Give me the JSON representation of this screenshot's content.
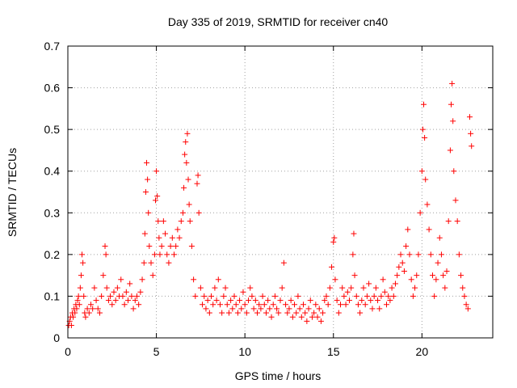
{
  "chart_data": {
    "type": "scatter",
    "title": "Day 335 of 2019, SRMTID for receiver cn40",
    "xlabel": "GPS time / hours",
    "ylabel": "SRMTID / TECUs",
    "xlim": [
      0,
      24
    ],
    "ylim": [
      0,
      0.7
    ],
    "xticks": [
      0,
      5,
      10,
      15,
      20
    ],
    "xtick_labels": [
      "0",
      "5",
      "10",
      "15",
      "20"
    ],
    "yticks": [
      0,
      0.1,
      0.2,
      0.3,
      0.4,
      0.5,
      0.6,
      0.7
    ],
    "ytick_labels": [
      "0",
      "0.1",
      "0.2",
      "0.3",
      "0.4",
      "0.5",
      "0.6",
      "0.7"
    ],
    "grid": true,
    "marker": "+",
    "color": "#ff0000",
    "series": [
      {
        "name": "SRMTID",
        "points": [
          [
            0.05,
            0.03
          ],
          [
            0.1,
            0.04
          ],
          [
            0.15,
            0.05
          ],
          [
            0.2,
            0.03
          ],
          [
            0.25,
            0.06
          ],
          [
            0.3,
            0.05
          ],
          [
            0.35,
            0.07
          ],
          [
            0.4,
            0.06
          ],
          [
            0.45,
            0.08
          ],
          [
            0.5,
            0.07
          ],
          [
            0.55,
            0.09
          ],
          [
            0.6,
            0.1
          ],
          [
            0.65,
            0.08
          ],
          [
            0.7,
            0.12
          ],
          [
            0.75,
            0.15
          ],
          [
            0.8,
            0.2
          ],
          [
            0.85,
            0.18
          ],
          [
            0.9,
            0.1
          ],
          [
            0.95,
            0.06
          ],
          [
            1.0,
            0.05
          ],
          [
            1.1,
            0.07
          ],
          [
            1.2,
            0.06
          ],
          [
            1.3,
            0.08
          ],
          [
            1.4,
            0.07
          ],
          [
            1.5,
            0.12
          ],
          [
            1.6,
            0.09
          ],
          [
            1.7,
            0.07
          ],
          [
            1.8,
            0.06
          ],
          [
            1.9,
            0.1
          ],
          [
            2.0,
            0.15
          ],
          [
            2.1,
            0.22
          ],
          [
            2.15,
            0.2
          ],
          [
            2.2,
            0.12
          ],
          [
            2.3,
            0.09
          ],
          [
            2.4,
            0.1
          ],
          [
            2.5,
            0.08
          ],
          [
            2.6,
            0.11
          ],
          [
            2.7,
            0.09
          ],
          [
            2.8,
            0.12
          ],
          [
            2.9,
            0.1
          ],
          [
            3.0,
            0.14
          ],
          [
            3.1,
            0.1
          ],
          [
            3.2,
            0.08
          ],
          [
            3.3,
            0.11
          ],
          [
            3.4,
            0.09
          ],
          [
            3.5,
            0.13
          ],
          [
            3.6,
            0.1
          ],
          [
            3.7,
            0.07
          ],
          [
            3.8,
            0.09
          ],
          [
            3.9,
            0.1
          ],
          [
            4.0,
            0.08
          ],
          [
            4.1,
            0.11
          ],
          [
            4.2,
            0.14
          ],
          [
            4.3,
            0.18
          ],
          [
            4.35,
            0.25
          ],
          [
            4.4,
            0.35
          ],
          [
            4.45,
            0.42
          ],
          [
            4.5,
            0.38
          ],
          [
            4.55,
            0.3
          ],
          [
            4.6,
            0.22
          ],
          [
            4.7,
            0.18
          ],
          [
            4.8,
            0.15
          ],
          [
            4.9,
            0.2
          ],
          [
            4.95,
            0.33
          ],
          [
            5.0,
            0.4
          ],
          [
            5.05,
            0.34
          ],
          [
            5.1,
            0.28
          ],
          [
            5.15,
            0.24
          ],
          [
            5.2,
            0.2
          ],
          [
            5.3,
            0.22
          ],
          [
            5.4,
            0.28
          ],
          [
            5.5,
            0.25
          ],
          [
            5.6,
            0.2
          ],
          [
            5.7,
            0.18
          ],
          [
            5.8,
            0.22
          ],
          [
            5.9,
            0.24
          ],
          [
            6.0,
            0.2
          ],
          [
            6.1,
            0.22
          ],
          [
            6.2,
            0.26
          ],
          [
            6.3,
            0.24
          ],
          [
            6.4,
            0.28
          ],
          [
            6.5,
            0.3
          ],
          [
            6.55,
            0.36
          ],
          [
            6.6,
            0.44
          ],
          [
            6.65,
            0.47
          ],
          [
            6.7,
            0.42
          ],
          [
            6.75,
            0.49
          ],
          [
            6.8,
            0.38
          ],
          [
            6.85,
            0.32
          ],
          [
            6.9,
            0.28
          ],
          [
            7.0,
            0.22
          ],
          [
            7.1,
            0.14
          ],
          [
            7.2,
            0.1
          ],
          [
            7.3,
            0.37
          ],
          [
            7.35,
            0.39
          ],
          [
            7.4,
            0.3
          ],
          [
            7.5,
            0.12
          ],
          [
            7.6,
            0.08
          ],
          [
            7.7,
            0.1
          ],
          [
            7.8,
            0.07
          ],
          [
            7.9,
            0.09
          ],
          [
            8.0,
            0.06
          ],
          [
            8.1,
            0.1
          ],
          [
            8.2,
            0.08
          ],
          [
            8.3,
            0.12
          ],
          [
            8.4,
            0.09
          ],
          [
            8.5,
            0.14
          ],
          [
            8.6,
            0.08
          ],
          [
            8.7,
            0.06
          ],
          [
            8.8,
            0.1
          ],
          [
            8.9,
            0.12
          ],
          [
            9.0,
            0.08
          ],
          [
            9.1,
            0.06
          ],
          [
            9.2,
            0.09
          ],
          [
            9.3,
            0.07
          ],
          [
            9.4,
            0.1
          ],
          [
            9.5,
            0.08
          ],
          [
            9.6,
            0.06
          ],
          [
            9.7,
            0.09
          ],
          [
            9.8,
            0.07
          ],
          [
            9.9,
            0.11
          ],
          [
            10.0,
            0.08
          ],
          [
            10.1,
            0.06
          ],
          [
            10.2,
            0.09
          ],
          [
            10.3,
            0.12
          ],
          [
            10.4,
            0.1
          ],
          [
            10.5,
            0.07
          ],
          [
            10.6,
            0.09
          ],
          [
            10.7,
            0.06
          ],
          [
            10.8,
            0.08
          ],
          [
            10.9,
            0.07
          ],
          [
            11.0,
            0.1
          ],
          [
            11.1,
            0.08
          ],
          [
            11.2,
            0.06
          ],
          [
            11.3,
            0.09
          ],
          [
            11.4,
            0.07
          ],
          [
            11.5,
            0.05
          ],
          [
            11.6,
            0.08
          ],
          [
            11.7,
            0.1
          ],
          [
            11.8,
            0.07
          ],
          [
            11.9,
            0.06
          ],
          [
            12.0,
            0.09
          ],
          [
            12.1,
            0.12
          ],
          [
            12.2,
            0.18
          ],
          [
            12.3,
            0.08
          ],
          [
            12.4,
            0.06
          ],
          [
            12.5,
            0.07
          ],
          [
            12.6,
            0.09
          ],
          [
            12.7,
            0.05
          ],
          [
            12.8,
            0.08
          ],
          [
            12.9,
            0.06
          ],
          [
            13.0,
            0.1
          ],
          [
            13.1,
            0.07
          ],
          [
            13.2,
            0.05
          ],
          [
            13.3,
            0.08
          ],
          [
            13.4,
            0.06
          ],
          [
            13.5,
            0.04
          ],
          [
            13.6,
            0.07
          ],
          [
            13.7,
            0.09
          ],
          [
            13.8,
            0.05
          ],
          [
            13.9,
            0.06
          ],
          [
            14.0,
            0.08
          ],
          [
            14.1,
            0.05
          ],
          [
            14.2,
            0.07
          ],
          [
            14.3,
            0.04
          ],
          [
            14.4,
            0.06
          ],
          [
            14.5,
            0.09
          ],
          [
            14.6,
            0.1
          ],
          [
            14.7,
            0.08
          ],
          [
            14.8,
            0.12
          ],
          [
            14.9,
            0.17
          ],
          [
            15.0,
            0.23
          ],
          [
            15.05,
            0.24
          ],
          [
            15.1,
            0.14
          ],
          [
            15.2,
            0.09
          ],
          [
            15.3,
            0.06
          ],
          [
            15.4,
            0.08
          ],
          [
            15.5,
            0.12
          ],
          [
            15.6,
            0.1
          ],
          [
            15.7,
            0.08
          ],
          [
            15.8,
            0.11
          ],
          [
            15.9,
            0.09
          ],
          [
            16.0,
            0.12
          ],
          [
            16.1,
            0.2
          ],
          [
            16.15,
            0.25
          ],
          [
            16.2,
            0.15
          ],
          [
            16.3,
            0.1
          ],
          [
            16.4,
            0.08
          ],
          [
            16.5,
            0.06
          ],
          [
            16.6,
            0.09
          ],
          [
            16.7,
            0.12
          ],
          [
            16.8,
            0.08
          ],
          [
            16.9,
            0.1
          ],
          [
            17.0,
            0.13
          ],
          [
            17.1,
            0.09
          ],
          [
            17.2,
            0.07
          ],
          [
            17.3,
            0.1
          ],
          [
            17.4,
            0.12
          ],
          [
            17.5,
            0.09
          ],
          [
            17.6,
            0.07
          ],
          [
            17.7,
            0.1
          ],
          [
            17.8,
            0.14
          ],
          [
            17.9,
            0.11
          ],
          [
            18.0,
            0.08
          ],
          [
            18.1,
            0.1
          ],
          [
            18.2,
            0.09
          ],
          [
            18.3,
            0.12
          ],
          [
            18.4,
            0.1
          ],
          [
            18.5,
            0.13
          ],
          [
            18.6,
            0.15
          ],
          [
            18.7,
            0.17
          ],
          [
            18.8,
            0.2
          ],
          [
            18.9,
            0.18
          ],
          [
            19.0,
            0.16
          ],
          [
            19.1,
            0.22
          ],
          [
            19.2,
            0.26
          ],
          [
            19.3,
            0.2
          ],
          [
            19.4,
            0.14
          ],
          [
            19.5,
            0.1
          ],
          [
            19.6,
            0.12
          ],
          [
            19.7,
            0.15
          ],
          [
            19.8,
            0.2
          ],
          [
            19.9,
            0.3
          ],
          [
            20.0,
            0.4
          ],
          [
            20.05,
            0.5
          ],
          [
            20.1,
            0.56
          ],
          [
            20.15,
            0.48
          ],
          [
            20.2,
            0.38
          ],
          [
            20.3,
            0.32
          ],
          [
            20.4,
            0.26
          ],
          [
            20.5,
            0.2
          ],
          [
            20.6,
            0.15
          ],
          [
            20.7,
            0.1
          ],
          [
            20.8,
            0.14
          ],
          [
            20.9,
            0.18
          ],
          [
            21.0,
            0.24
          ],
          [
            21.1,
            0.2
          ],
          [
            21.2,
            0.15
          ],
          [
            21.3,
            0.12
          ],
          [
            21.4,
            0.16
          ],
          [
            21.5,
            0.28
          ],
          [
            21.6,
            0.45
          ],
          [
            21.65,
            0.56
          ],
          [
            21.7,
            0.61
          ],
          [
            21.75,
            0.52
          ],
          [
            21.8,
            0.4
          ],
          [
            21.9,
            0.33
          ],
          [
            22.0,
            0.28
          ],
          [
            22.1,
            0.2
          ],
          [
            22.2,
            0.15
          ],
          [
            22.3,
            0.12
          ],
          [
            22.4,
            0.1
          ],
          [
            22.5,
            0.08
          ],
          [
            22.6,
            0.07
          ],
          [
            22.7,
            0.53
          ],
          [
            22.75,
            0.49
          ],
          [
            22.8,
            0.46
          ]
        ]
      }
    ]
  }
}
